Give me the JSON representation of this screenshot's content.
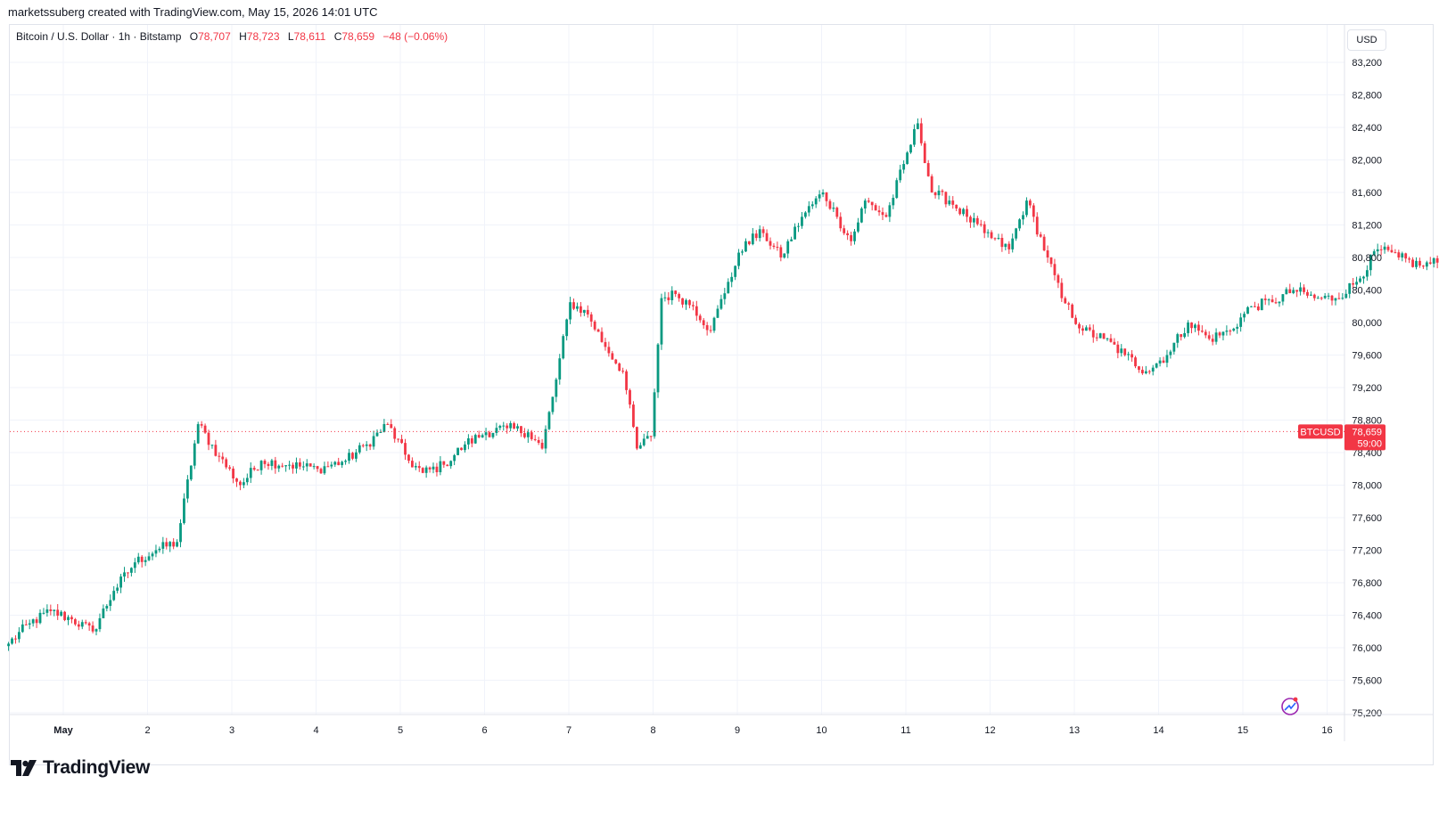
{
  "caption": "marketssuberg created with TradingView.com, May 15, 2026 14:01 UTC",
  "legend": {
    "symbol": "Bitcoin / U.S. Dollar · 1h · Bitstamp",
    "open_label": "O",
    "open": "78,707",
    "high_label": "H",
    "high": "78,723",
    "low_label": "L",
    "low": "78,611",
    "close_label": "C",
    "close": "78,659",
    "change": "−48 (−0.06%)"
  },
  "currency_button": "USD",
  "price_tag": {
    "ticker": "BTCUSD",
    "price": "78,659",
    "countdown": "59:00"
  },
  "brand": "TradingView",
  "colors": {
    "up": "#089981",
    "down": "#f23645",
    "grid": "#f0f3fa",
    "text": "#131722"
  },
  "chart_data": {
    "type": "candlestick",
    "interval": "1h",
    "y_axis": {
      "min": 75200,
      "max": 83200,
      "ticks": [
        83200,
        82800,
        82400,
        82000,
        81600,
        81200,
        80800,
        80400,
        80000,
        79600,
        79200,
        78800,
        78400,
        78000,
        77600,
        77200,
        76800,
        76400,
        76000,
        75600,
        75200
      ],
      "tick_labels": [
        "83,200",
        "82,800",
        "82,400",
        "82,000",
        "81,600",
        "81,200",
        "80,800",
        "80,400",
        "80,000",
        "79,600",
        "79,200",
        "78,800",
        "78,400",
        "78,000",
        "77,600",
        "77,200",
        "76,800",
        "76,400",
        "76,000",
        "75,600",
        "75,200"
      ]
    },
    "x_axis": {
      "labels": [
        "May",
        "2",
        "3",
        "4",
        "5",
        "6",
        "7",
        "8",
        "9",
        "10",
        "11",
        "12",
        "13",
        "14",
        "15",
        "16"
      ]
    },
    "last_price": 78659,
    "grid": true,
    "path_anchors": [
      [
        0,
        76050
      ],
      [
        6,
        76300
      ],
      [
        12,
        76450
      ],
      [
        18,
        76350
      ],
      [
        24,
        76200
      ],
      [
        30,
        76700
      ],
      [
        36,
        77050
      ],
      [
        42,
        77200
      ],
      [
        48,
        77300
      ],
      [
        54,
        78750
      ],
      [
        60,
        78350
      ],
      [
        66,
        78000
      ],
      [
        72,
        78300
      ],
      [
        80,
        78250
      ],
      [
        88,
        78200
      ],
      [
        96,
        78300
      ],
      [
        102,
        78500
      ],
      [
        108,
        78750
      ],
      [
        114,
        78300
      ],
      [
        118,
        78150
      ],
      [
        124,
        78250
      ],
      [
        130,
        78500
      ],
      [
        136,
        78650
      ],
      [
        142,
        78700
      ],
      [
        148,
        78650
      ],
      [
        152,
        78450
      ],
      [
        156,
        79300
      ],
      [
        160,
        80250
      ],
      [
        165,
        80100
      ],
      [
        170,
        79700
      ],
      [
        175,
        79400
      ],
      [
        179,
        78450
      ],
      [
        183,
        78600
      ],
      [
        186,
        80300
      ],
      [
        190,
        80350
      ],
      [
        195,
        80200
      ],
      [
        200,
        79900
      ],
      [
        205,
        80500
      ],
      [
        210,
        81000
      ],
      [
        215,
        81100
      ],
      [
        220,
        80800
      ],
      [
        226,
        81300
      ],
      [
        232,
        81600
      ],
      [
        236,
        81300
      ],
      [
        240,
        81000
      ],
      [
        244,
        81500
      ],
      [
        250,
        81300
      ],
      [
        255,
        81950
      ],
      [
        259,
        82450
      ],
      [
        263,
        81600
      ],
      [
        268,
        81500
      ],
      [
        273,
        81300
      ],
      [
        278,
        81100
      ],
      [
        285,
        80900
      ],
      [
        290,
        81500
      ],
      [
        296,
        80800
      ],
      [
        300,
        80300
      ],
      [
        306,
        79900
      ],
      [
        312,
        79800
      ],
      [
        318,
        79600
      ],
      [
        324,
        79400
      ],
      [
        330,
        79600
      ],
      [
        336,
        80000
      ],
      [
        342,
        79800
      ],
      [
        348,
        79900
      ],
      [
        354,
        80200
      ],
      [
        360,
        80250
      ],
      [
        366,
        80400
      ],
      [
        372,
        80300
      ],
      [
        378,
        80300
      ],
      [
        384,
        80500
      ],
      [
        390,
        80900
      ],
      [
        396,
        80800
      ],
      [
        402,
        80700
      ],
      [
        408,
        80750
      ],
      [
        414,
        80700
      ],
      [
        420,
        80800
      ],
      [
        426,
        80900
      ],
      [
        432,
        81350
      ],
      [
        438,
        81300
      ],
      [
        442,
        80700
      ],
      [
        446,
        82200
      ],
      [
        449,
        81800
      ],
      [
        453,
        80900
      ],
      [
        457,
        80800
      ],
      [
        462,
        80700
      ],
      [
        466,
        80900
      ],
      [
        471,
        81000
      ],
      [
        476,
        81950
      ],
      [
        481,
        81900
      ],
      [
        486,
        81800
      ],
      [
        491,
        81500
      ],
      [
        496,
        81000
      ],
      [
        502,
        81000
      ],
      [
        508,
        80700
      ],
      [
        514,
        80500
      ],
      [
        520,
        80300
      ],
      [
        524,
        80000
      ],
      [
        528,
        80600
      ],
      [
        533,
        80800
      ],
      [
        538,
        80500
      ],
      [
        544,
        80600
      ],
      [
        548,
        81000
      ],
      [
        553,
        81100
      ],
      [
        558,
        81200
      ],
      [
        562,
        80500
      ],
      [
        566,
        79700
      ],
      [
        570,
        78850
      ],
      [
        574,
        79400
      ],
      [
        578,
        79600
      ],
      [
        584,
        79300
      ],
      [
        590,
        79350
      ],
      [
        594,
        79100
      ],
      [
        598,
        79700
      ],
      [
        602,
        79800
      ],
      [
        606,
        79400
      ],
      [
        610,
        79300
      ],
      [
        614,
        79800
      ],
      [
        618,
        81800
      ],
      [
        623,
        81500
      ],
      [
        628,
        81200
      ],
      [
        632,
        81300
      ],
      [
        636,
        81100
      ],
      [
        640,
        80800
      ],
      [
        644,
        80500
      ],
      [
        648,
        80700
      ],
      [
        651,
        80550
      ],
      [
        653,
        78680
      ],
      [
        655,
        78659
      ]
    ]
  }
}
